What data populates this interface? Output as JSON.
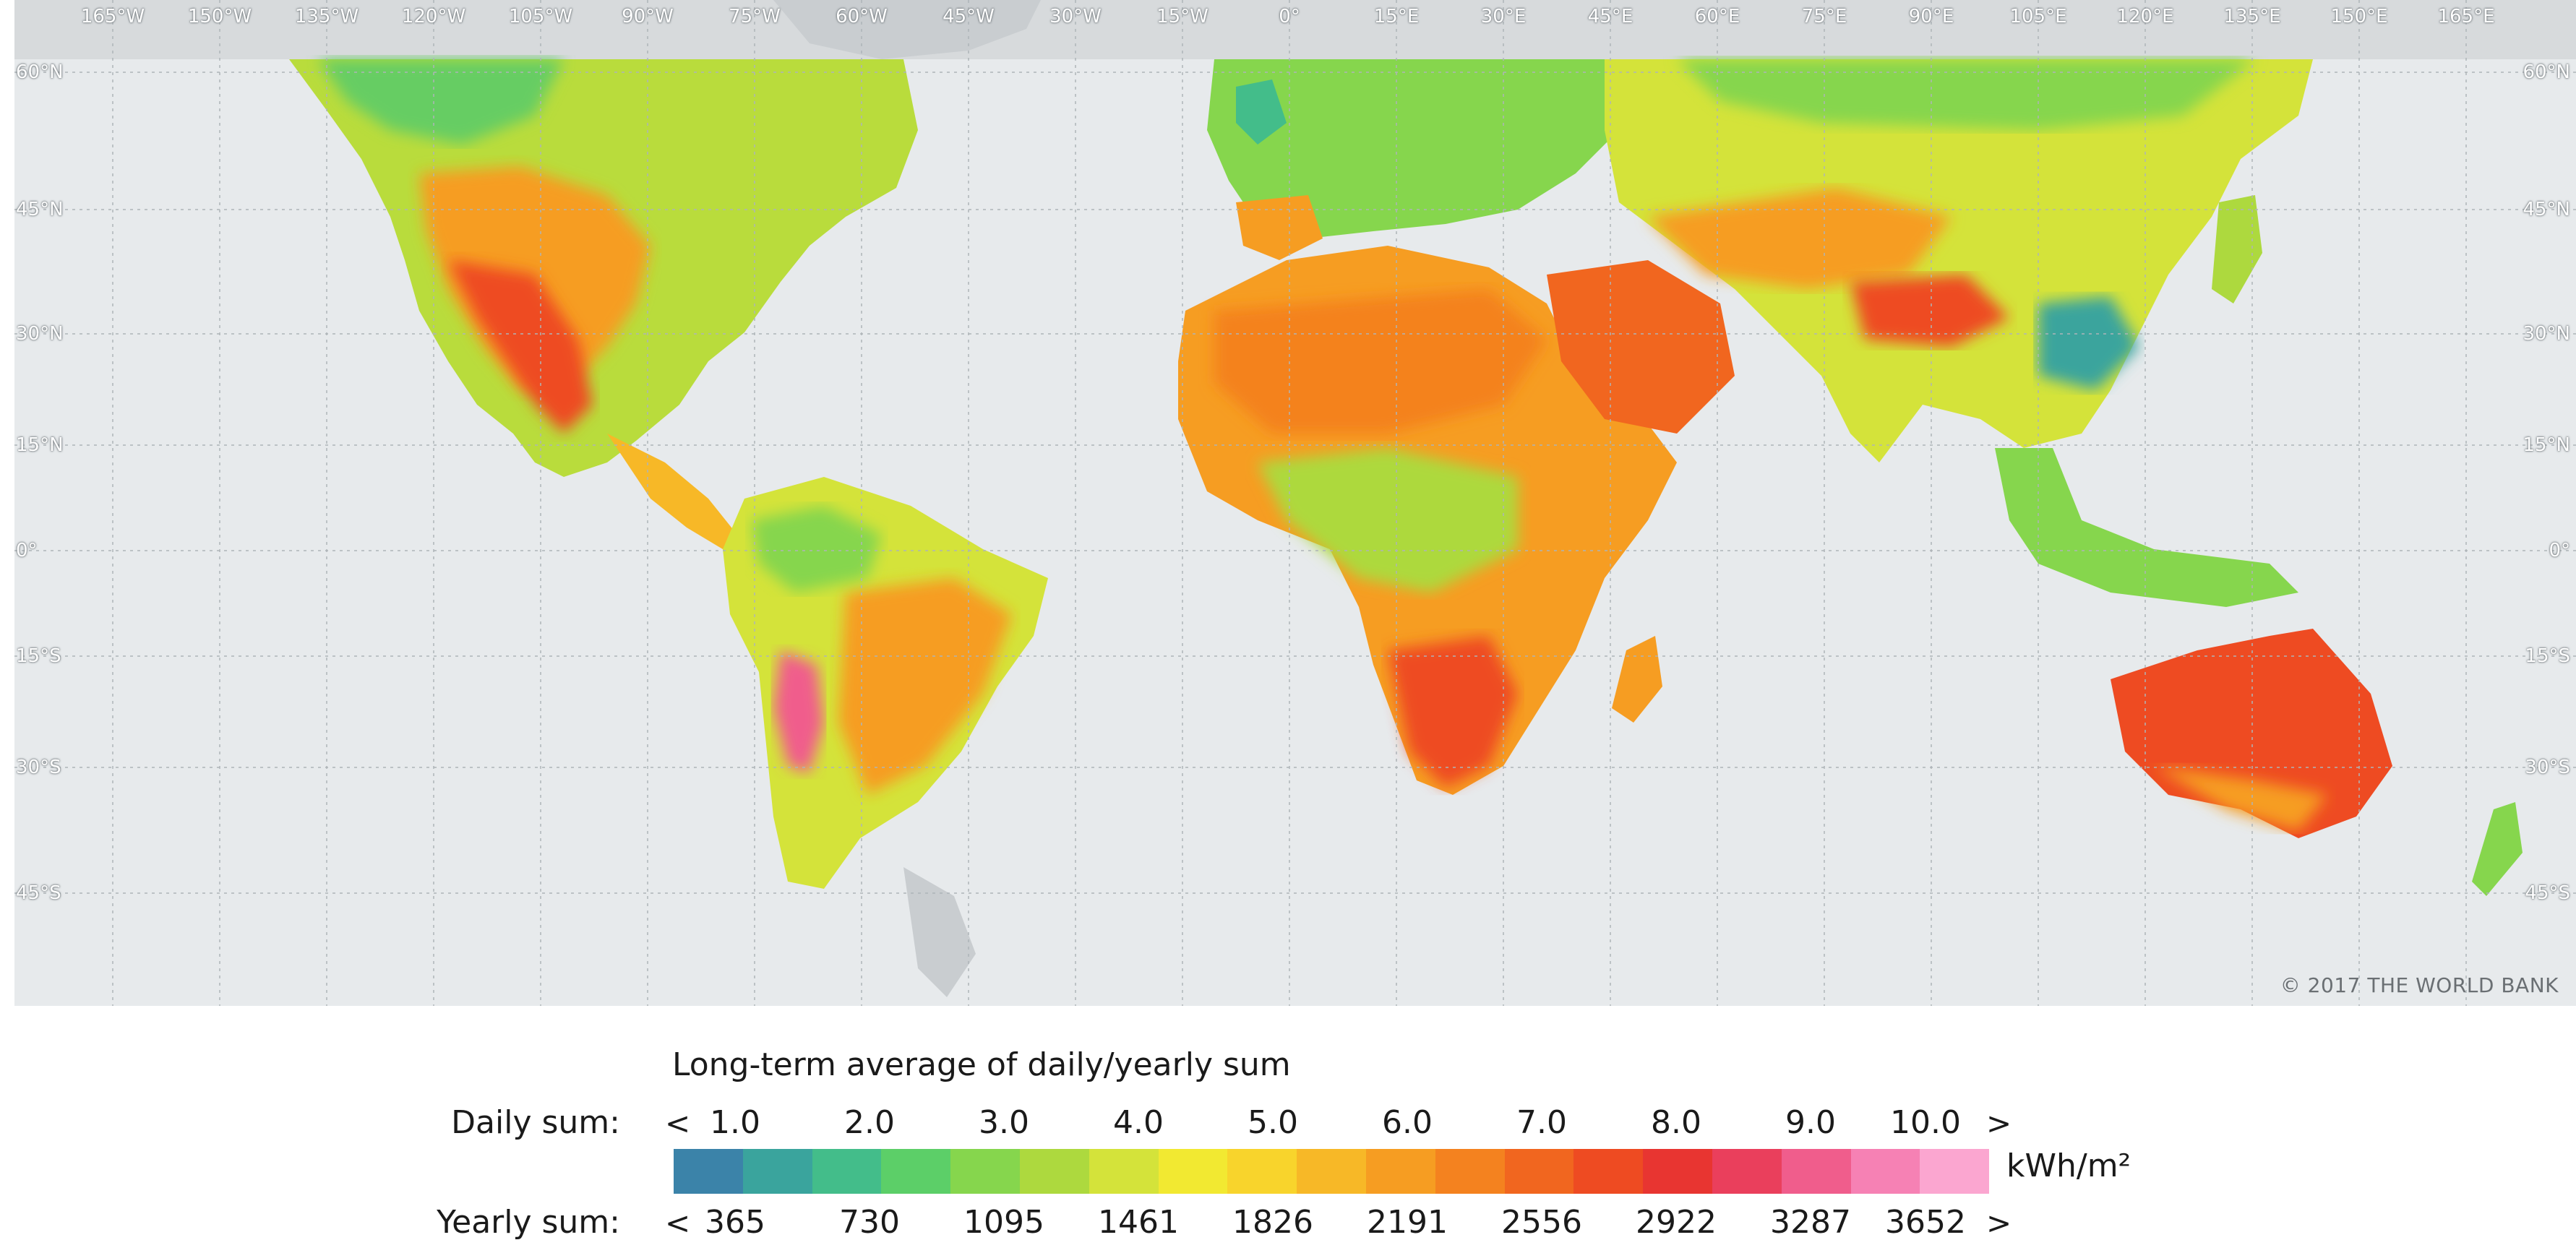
{
  "map": {
    "longitude_labels": [
      "165°W",
      "150°W",
      "135°W",
      "120°W",
      "105°W",
      "90°W",
      "75°W",
      "60°W",
      "45°W",
      "30°W",
      "15°W",
      "0°",
      "15°E",
      "30°E",
      "45°E",
      "60°E",
      "75°E",
      "90°E",
      "105°E",
      "120°E",
      "135°E",
      "150°E",
      "165°E"
    ],
    "latitude_labels": [
      "60°N",
      "45°N",
      "30°N",
      "15°N",
      "0°",
      "15°S",
      "30°S",
      "45°S"
    ],
    "copyright": "© 2017 THE WORLD BANK",
    "colors": {
      "ocean": "#e7eaec",
      "no_data_land": "#c9cdd0",
      "graticule": "#aeb4b8"
    }
  },
  "legend": {
    "title": "Long-term average of daily/yearly sum",
    "daily_label": "Daily sum:",
    "yearly_label": "Yearly sum:",
    "less_symbol": "<",
    "greater_symbol": ">",
    "daily_ticks": [
      "1.0",
      "2.0",
      "3.0",
      "4.0",
      "5.0",
      "6.0",
      "7.0",
      "8.0",
      "9.0",
      "10.0"
    ],
    "yearly_ticks": [
      "365",
      "730",
      "1095",
      "1461",
      "1826",
      "2191",
      "2556",
      "2922",
      "3287",
      "3652"
    ],
    "unit": "kWh/m²",
    "colors": [
      "#3b83a9",
      "#3aa49d",
      "#43bd8a",
      "#5ccf68",
      "#86d64d",
      "#add93e",
      "#d4e33a",
      "#f2e931",
      "#f8d42c",
      "#f7b827",
      "#f69d22",
      "#f4821f",
      "#f1661f",
      "#ee4b22",
      "#e83531",
      "#ea3f5c",
      "#f05d8c",
      "#f681b4",
      "#fba6d0"
    ]
  }
}
